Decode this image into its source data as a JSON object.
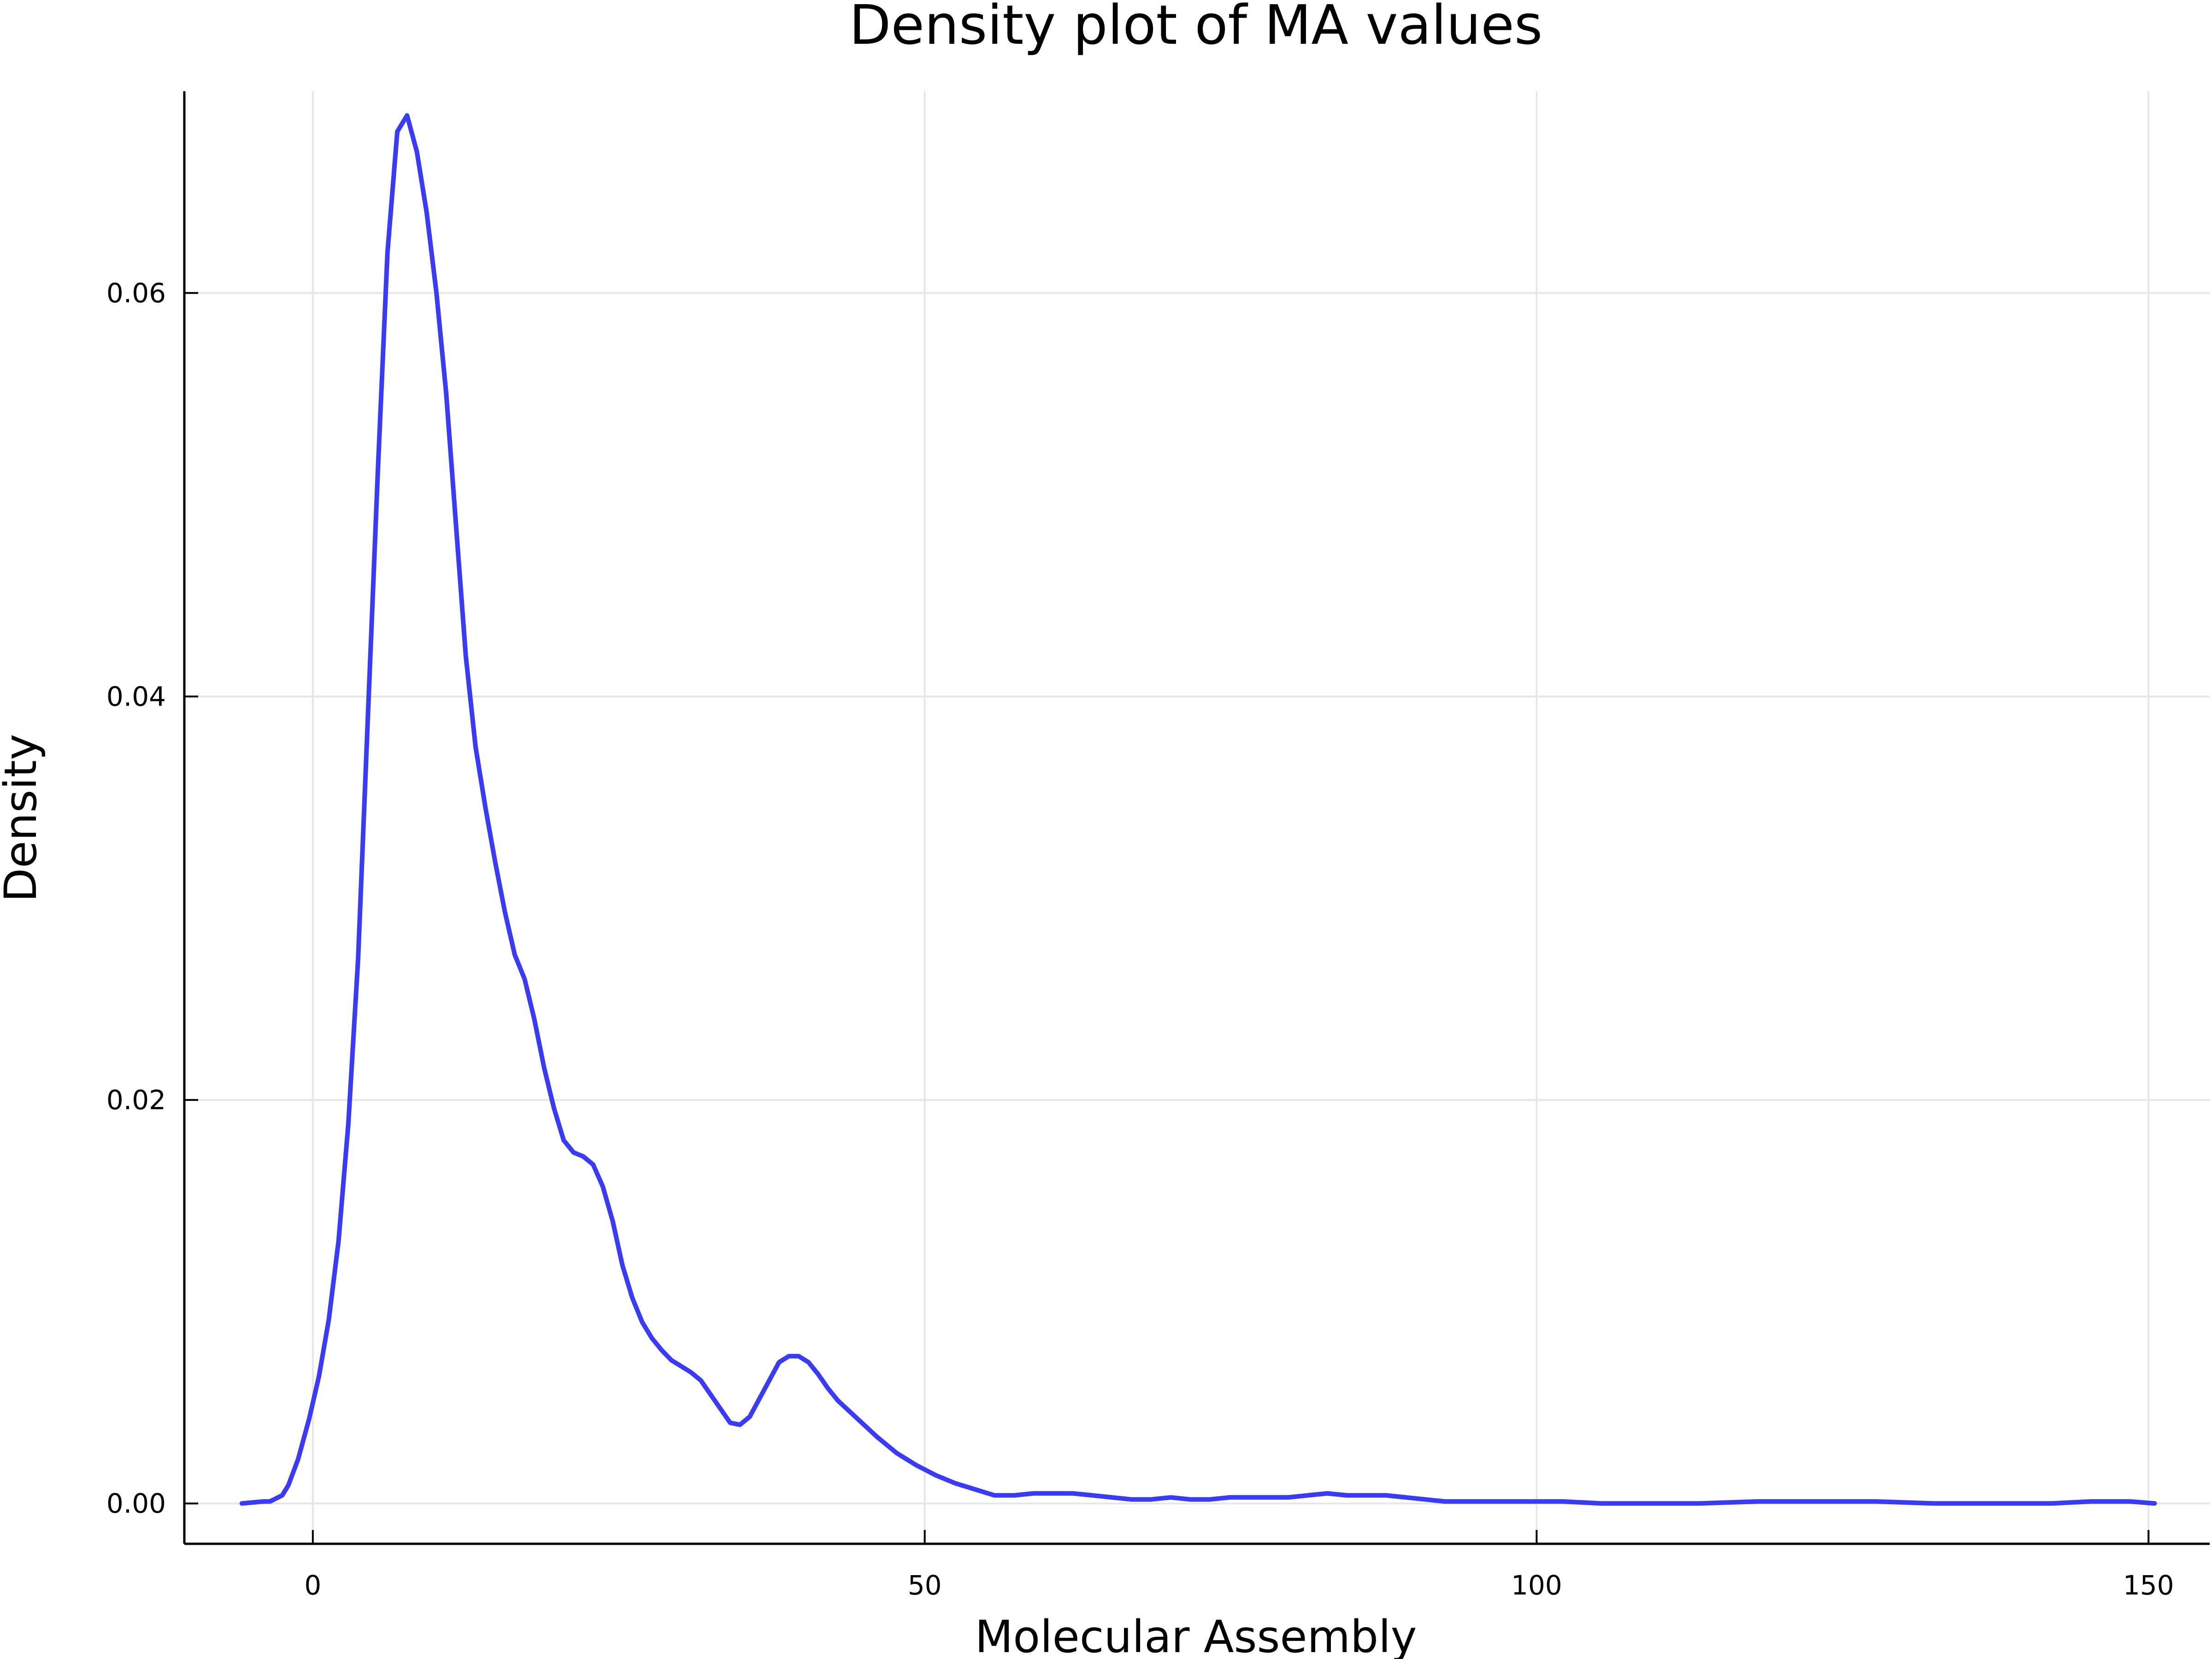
{
  "chart_data": {
    "type": "line",
    "title": "Density plot of MA values",
    "xlabel": "Molecular Assembly",
    "ylabel": "Density",
    "xlim": [
      -10.5,
      155
    ],
    "ylim": [
      -0.002,
      0.07
    ],
    "xticks": [
      0,
      50,
      100,
      150
    ],
    "xtick_labels": [
      "0",
      "50",
      "100",
      "150"
    ],
    "yticks": [
      0.0,
      0.02,
      0.04,
      0.06
    ],
    "ytick_labels": [
      "0.00",
      "0.02",
      "0.04",
      "0.06"
    ],
    "grid": true,
    "legend": "none",
    "series": [
      {
        "color": "#3b3bf0",
        "x": [
          -5.8,
          -4,
          -3.5,
          -2.5,
          -2,
          -1.2,
          -0.3,
          0.5,
          1.3,
          2.1,
          2.9,
          3.7,
          4.5,
          5.3,
          6.1,
          6.9,
          7.7,
          8.5,
          9.3,
          10.1,
          10.9,
          11.7,
          12.5,
          13.3,
          14.1,
          14.9,
          15.7,
          16.5,
          17.3,
          18.1,
          18.9,
          19.7,
          20.5,
          21.3,
          22.1,
          22.9,
          23.7,
          24.5,
          25.3,
          26.1,
          26.9,
          27.7,
          28.5,
          29.3,
          30.1,
          30.9,
          31.7,
          32.5,
          33.3,
          34.1,
          34.9,
          35.7,
          36.5,
          37.3,
          38.1,
          38.9,
          39.7,
          40.5,
          41.3,
          42.1,
          42.9,
          44.5,
          46.1,
          47.7,
          49.3,
          50.9,
          52.5,
          54.1,
          55.7,
          57.3,
          58.9,
          60.5,
          62.1,
          63.7,
          65.3,
          66.9,
          68.5,
          70.1,
          71.7,
          73.3,
          74.9,
          76.5,
          78.1,
          79.7,
          81.3,
          82.9,
          84.5,
          86.1,
          87.7,
          89.3,
          90.9,
          92.5,
          95.7,
          98.9,
          102.1,
          105.3,
          108.5,
          113.3,
          118.1,
          122.9,
          127.7,
          132.5,
          137.3,
          142.1,
          145.3,
          148.5,
          150.5
        ],
        "y": [
          0.0,
          0.0001,
          0.0001,
          0.0004,
          0.0009,
          0.0022,
          0.0042,
          0.0063,
          0.0091,
          0.013,
          0.0188,
          0.027,
          0.039,
          0.051,
          0.062,
          0.068,
          0.0688,
          0.067,
          0.064,
          0.06,
          0.055,
          0.0485,
          0.042,
          0.0375,
          0.0345,
          0.0318,
          0.0293,
          0.0272,
          0.026,
          0.024,
          0.0216,
          0.0196,
          0.018,
          0.0174,
          0.0172,
          0.0168,
          0.0157,
          0.014,
          0.0118,
          0.0102,
          0.009,
          0.0082,
          0.0076,
          0.0071,
          0.0068,
          0.0065,
          0.0061,
          0.0054,
          0.0047,
          0.004,
          0.0039,
          0.0043,
          0.0052,
          0.0061,
          0.007,
          0.0073,
          0.0073,
          0.007,
          0.0064,
          0.0057,
          0.0051,
          0.0042,
          0.0033,
          0.0025,
          0.0019,
          0.0014,
          0.001,
          0.0007,
          0.0004,
          0.0004,
          0.0005,
          0.0005,
          0.0005,
          0.0004,
          0.0003,
          0.0002,
          0.0002,
          0.0003,
          0.0002,
          0.0002,
          0.0003,
          0.0003,
          0.0003,
          0.0003,
          0.0004,
          0.0005,
          0.0004,
          0.0004,
          0.0004,
          0.0003,
          0.0002,
          0.0001,
          0.0001,
          0.0001,
          0.0001,
          0.0,
          0.0,
          0.0,
          0.0001,
          0.0001,
          0.0001,
          0.0,
          0.0,
          0.0,
          0.0001,
          0.0001,
          0.0
        ]
      }
    ]
  }
}
